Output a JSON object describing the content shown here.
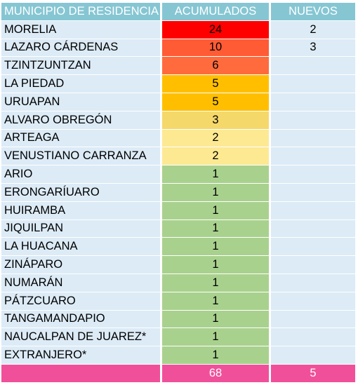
{
  "headers": {
    "municipio": "MUNICIPIO DE RESIDENCIA",
    "acumulados": "ACUMULADOS",
    "nuevos": "NUEVOS"
  },
  "rows": [
    {
      "municipio": "MORELIA",
      "acumulados": "24",
      "nuevos": "2",
      "color": "#ff0000"
    },
    {
      "municipio": "LAZARO CÁRDENAS",
      "acumulados": "10",
      "nuevos": "3",
      "color": "#ff5b35"
    },
    {
      "municipio": "TZINTZUNTZAN",
      "acumulados": "6",
      "nuevos": "",
      "color": "#ff6b3d"
    },
    {
      "municipio": "LA PIEDAD",
      "acumulados": "5",
      "nuevos": "",
      "color": "#ffbf00"
    },
    {
      "municipio": "URUAPAN",
      "acumulados": "5",
      "nuevos": "",
      "color": "#ffbf00"
    },
    {
      "municipio": "ALVARO OBREGÓN",
      "acumulados": "3",
      "nuevos": "",
      "color": "#f5d86a"
    },
    {
      "municipio": "ARTEAGA",
      "acumulados": "2",
      "nuevos": "",
      "color": "#fde992"
    },
    {
      "municipio": "VENUSTIANO CARRANZA",
      "acumulados": "2",
      "nuevos": "",
      "color": "#fde992"
    },
    {
      "municipio": "ARIO",
      "acumulados": "1",
      "nuevos": "",
      "color": "#a9d18e"
    },
    {
      "municipio": "ERONGARÍUARO",
      "acumulados": "1",
      "nuevos": "",
      "color": "#a9d18e"
    },
    {
      "municipio": "HUIRAMBA",
      "acumulados": "1",
      "nuevos": "",
      "color": "#a9d18e"
    },
    {
      "municipio": "JIQUILPAN",
      "acumulados": "1",
      "nuevos": "",
      "color": "#a9d18e"
    },
    {
      "municipio": "LA HUACANA",
      "acumulados": "1",
      "nuevos": "",
      "color": "#a9d18e"
    },
    {
      "municipio": "ZINÁPARO",
      "acumulados": "1",
      "nuevos": "",
      "color": "#a9d18e"
    },
    {
      "municipio": "NUMARÁN",
      "acumulados": "1",
      "nuevos": "",
      "color": "#a9d18e"
    },
    {
      "municipio": "PÁTZCUARO",
      "acumulados": "1",
      "nuevos": "",
      "color": "#a9d18e"
    },
    {
      "municipio": "TANGAMANDAPIO",
      "acumulados": "1",
      "nuevos": "",
      "color": "#a9d18e"
    },
    {
      "municipio": "NAUCALPAN DE JUAREZ*",
      "acumulados": "1",
      "nuevos": "",
      "color": "#a9d18e"
    },
    {
      "municipio": "EXTRANJERO*",
      "acumulados": "1",
      "nuevos": "",
      "color": "#a9d18e"
    }
  ],
  "totals": {
    "municipio": "",
    "acumulados": "68",
    "nuevos": "5"
  }
}
